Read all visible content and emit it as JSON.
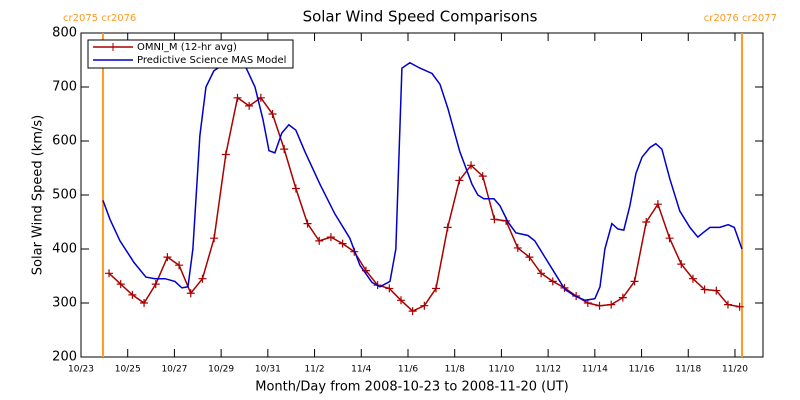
{
  "chart_data": {
    "type": "line",
    "title": "Solar Wind Speed Comparisons",
    "xlabel": "Month/Day from 2008-10-23 to 2008-11-20 (UT)",
    "ylabel": "Solar Wind Speed (km/s)",
    "xlim": [
      0,
      29.2
    ],
    "ylim": [
      200,
      800
    ],
    "xticks": [
      {
        "value": 0,
        "label": "10/23"
      },
      {
        "value": 2,
        "label": "10/25"
      },
      {
        "value": 4,
        "label": "10/27"
      },
      {
        "value": 6,
        "label": "10/29"
      },
      {
        "value": 8,
        "label": "10/31"
      },
      {
        "value": 10,
        "label": "11/2"
      },
      {
        "value": 12,
        "label": "11/4"
      },
      {
        "value": 14,
        "label": "11/6"
      },
      {
        "value": 16,
        "label": "11/8"
      },
      {
        "value": 18,
        "label": "11/10"
      },
      {
        "value": 20,
        "label": "11/12"
      },
      {
        "value": 22,
        "label": "11/14"
      },
      {
        "value": 24,
        "label": "11/16"
      },
      {
        "value": 26,
        "label": "11/18"
      },
      {
        "value": 28,
        "label": "11/20"
      }
    ],
    "yticks": [
      200,
      300,
      400,
      500,
      600,
      700,
      800
    ],
    "legend": "upper left",
    "vlines": [
      {
        "x": 0.94,
        "label": "cr2075 cr2076",
        "color": "#ff9922"
      },
      {
        "x": 28.3,
        "label": "cr2076 cr2077",
        "color": "#ff9922"
      }
    ],
    "series": [
      {
        "name": "OMNI_M (12-hr avg)",
        "color": "#aa0000",
        "marker": "+",
        "x": [
          1.2,
          1.7,
          2.2,
          2.7,
          3.2,
          3.7,
          4.2,
          4.7,
          5.2,
          5.7,
          6.2,
          6.7,
          7.2,
          7.7,
          8.2,
          8.7,
          9.2,
          9.7,
          10.2,
          10.7,
          11.2,
          11.7,
          12.2,
          12.7,
          13.2,
          13.7,
          14.2,
          14.7,
          15.2,
          15.7,
          16.2,
          16.7,
          17.2,
          17.7,
          18.2,
          18.7,
          19.2,
          19.7,
          20.2,
          20.7,
          21.2,
          21.7,
          22.2,
          22.7,
          23.2,
          23.7,
          24.2,
          24.7,
          25.2,
          25.7,
          26.2,
          26.7,
          27.2,
          27.7,
          28.2
        ],
        "values": [
          355,
          335,
          315,
          300,
          335,
          385,
          370,
          318,
          345,
          420,
          575,
          680,
          665,
          680,
          650,
          585,
          512,
          447,
          415,
          422,
          410,
          395,
          360,
          333,
          327,
          305,
          285,
          295,
          327,
          440,
          527,
          555,
          535,
          455,
          452,
          402,
          385,
          355,
          340,
          328,
          313,
          300,
          295,
          297,
          310,
          340,
          450,
          483,
          420,
          372,
          345,
          325,
          323,
          297,
          293
        ]
      },
      {
        "name": "Predictive Science MAS Model",
        "color": "#0000cc",
        "x": [
          0.94,
          1.24,
          1.67,
          2.27,
          2.78,
          3.17,
          3.6,
          4.02,
          4.32,
          4.58,
          4.79,
          5.09,
          5.35,
          5.69,
          6.04,
          6.46,
          7.02,
          7.45,
          7.79,
          8.05,
          8.3,
          8.6,
          8.9,
          9.2,
          9.59,
          10.23,
          10.87,
          11.51,
          11.94,
          12.46,
          12.8,
          13.23,
          13.48,
          13.74,
          14.08,
          14.51,
          15.03,
          15.37,
          15.71,
          16.22,
          16.74,
          16.99,
          17.25,
          17.68,
          17.94,
          18.28,
          18.62,
          19.14,
          19.43,
          19.86,
          20.29,
          20.72,
          21.15,
          21.58,
          22.0,
          22.22,
          22.43,
          22.73,
          22.99,
          23.24,
          23.5,
          23.76,
          24.02,
          24.36,
          24.61,
          24.87,
          25.21,
          25.64,
          26.07,
          26.41,
          26.63,
          26.93,
          27.35,
          27.71,
          27.97,
          28.3
        ],
        "values": [
          490,
          455,
          415,
          375,
          348,
          345,
          345,
          340,
          328,
          330,
          400,
          610,
          700,
          730,
          740,
          745,
          740,
          700,
          640,
          582,
          578,
          615,
          630,
          620,
          580,
          520,
          465,
          420,
          370,
          338,
          330,
          340,
          400,
          735,
          745,
          735,
          725,
          705,
          660,
          580,
          520,
          500,
          493,
          493,
          480,
          450,
          430,
          425,
          415,
          385,
          355,
          325,
          313,
          305,
          308,
          330,
          400,
          447,
          437,
          435,
          480,
          540,
          570,
          588,
          595,
          585,
          530,
          470,
          440,
          422,
          430,
          440,
          440,
          445,
          440,
          400
        ]
      }
    ]
  }
}
